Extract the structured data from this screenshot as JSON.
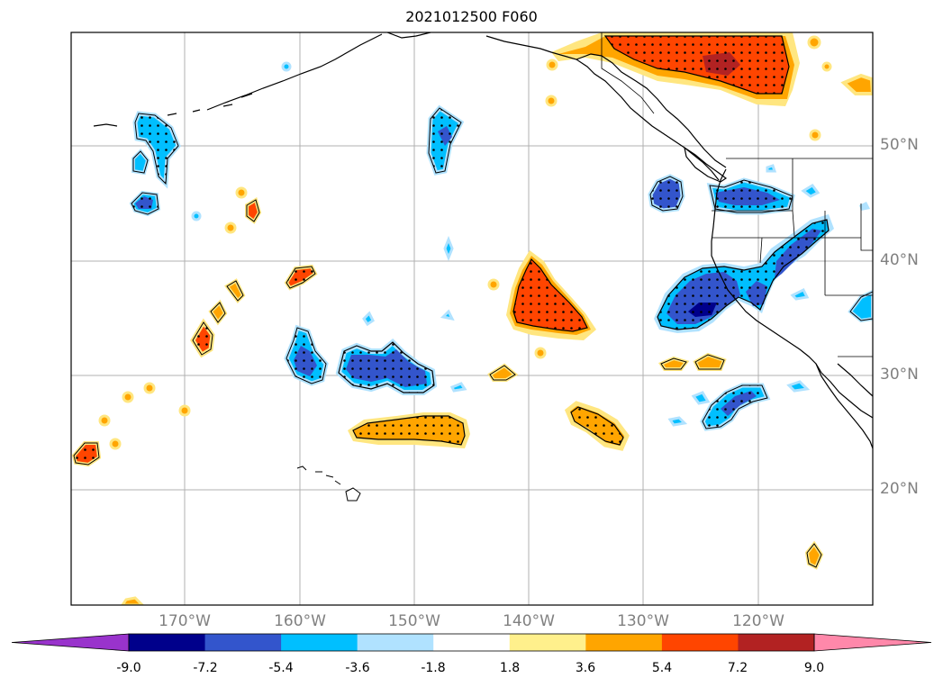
{
  "title": "2021012500 F060",
  "lat_labels": [
    "50°N",
    "40°N",
    "30°N",
    "20°N"
  ],
  "lon_labels": [
    "170°W",
    "160°W",
    "150°W",
    "140°W",
    "130°W",
    "120°W"
  ],
  "colorbar": {
    "ticks": [
      "-9.0",
      "-7.2",
      "-5.4",
      "-3.6",
      "-1.8",
      "1.8",
      "3.6",
      "5.4",
      "7.2",
      "9.0"
    ],
    "colors": [
      "#9933cc",
      "#00008b",
      "#3355cc",
      "#00bfff",
      "#b0e2ff",
      "#ffffff",
      "#fff08c",
      "#ffa500",
      "#ff4500",
      "#b22222",
      "#ff88aa"
    ]
  },
  "palette": {
    "strong_neg": "#3355cc",
    "neg": "#00bfff",
    "weak_neg": "#b0e2ff",
    "weak_pos": "#ffe680",
    "pos": "#ffa500",
    "strong_pos": "#ff4500",
    "very_strong_pos": "#b22222",
    "very_strong_neg": "#00008b",
    "grid": "#b0b0b0"
  }
}
